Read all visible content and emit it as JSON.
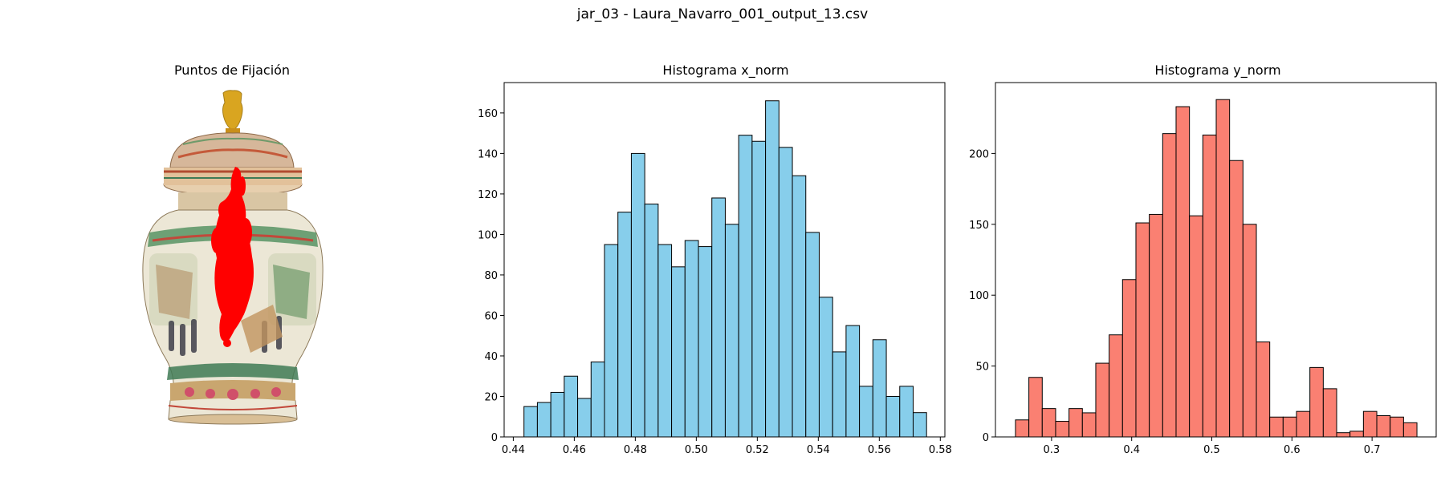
{
  "figure": {
    "suptitle": "jar_03 - Laura_Navarro_001_output_13.csv"
  },
  "panels": {
    "image": {
      "title": "Puntos de Fijación",
      "image_subject": "jar-with-fixation-points",
      "colors": {
        "marker": "#ff0000",
        "jar_body": "#ece7d6",
        "lid_finial": "#d9a520"
      }
    }
  },
  "chart_data": [
    {
      "type": "bar",
      "title": "Histograma x_norm",
      "xlabel": "",
      "ylabel": "",
      "color": "#87ceeb",
      "edgecolor": "#000000",
      "bin_start": 0.4435,
      "bin_width": 0.0044,
      "values": [
        15,
        17,
        22,
        30,
        19,
        37,
        95,
        111,
        140,
        115,
        95,
        84,
        97,
        94,
        118,
        105,
        149,
        146,
        166,
        143,
        129,
        101,
        69,
        42,
        55,
        25,
        48,
        20,
        25,
        12
      ],
      "xlim": [
        0.437,
        0.5815
      ],
      "ylim": [
        0,
        175
      ],
      "xticks": [
        0.44,
        0.46,
        0.48,
        0.5,
        0.52,
        0.54,
        0.56,
        0.58
      ],
      "xtick_labels": [
        "0.44",
        "0.46",
        "0.48",
        "0.50",
        "0.52",
        "0.54",
        "0.56",
        "0.58"
      ],
      "yticks": [
        0,
        20,
        40,
        60,
        80,
        100,
        120,
        140,
        160
      ],
      "ytick_labels": [
        "0",
        "20",
        "40",
        "60",
        "80",
        "100",
        "120",
        "140",
        "160"
      ],
      "grid": false
    },
    {
      "type": "bar",
      "title": "Histograma y_norm",
      "xlabel": "",
      "ylabel": "",
      "color": "#fa8072",
      "edgecolor": "#000000",
      "bin_start": 0.255,
      "bin_width": 0.0167,
      "values": [
        12,
        42,
        20,
        11,
        20,
        17,
        52,
        72,
        111,
        151,
        157,
        214,
        233,
        156,
        213,
        238,
        195,
        150,
        67,
        14,
        14,
        18,
        49,
        34,
        3,
        4,
        18,
        15,
        14,
        10
      ],
      "xlim": [
        0.23,
        0.78
      ],
      "ylim": [
        0,
        250
      ],
      "xticks": [
        0.3,
        0.4,
        0.5,
        0.6,
        0.7
      ],
      "xtick_labels": [
        "0.3",
        "0.4",
        "0.5",
        "0.6",
        "0.7"
      ],
      "yticks": [
        0,
        50,
        100,
        150,
        200
      ],
      "ytick_labels": [
        "0",
        "50",
        "100",
        "150",
        "200"
      ],
      "grid": false
    }
  ]
}
